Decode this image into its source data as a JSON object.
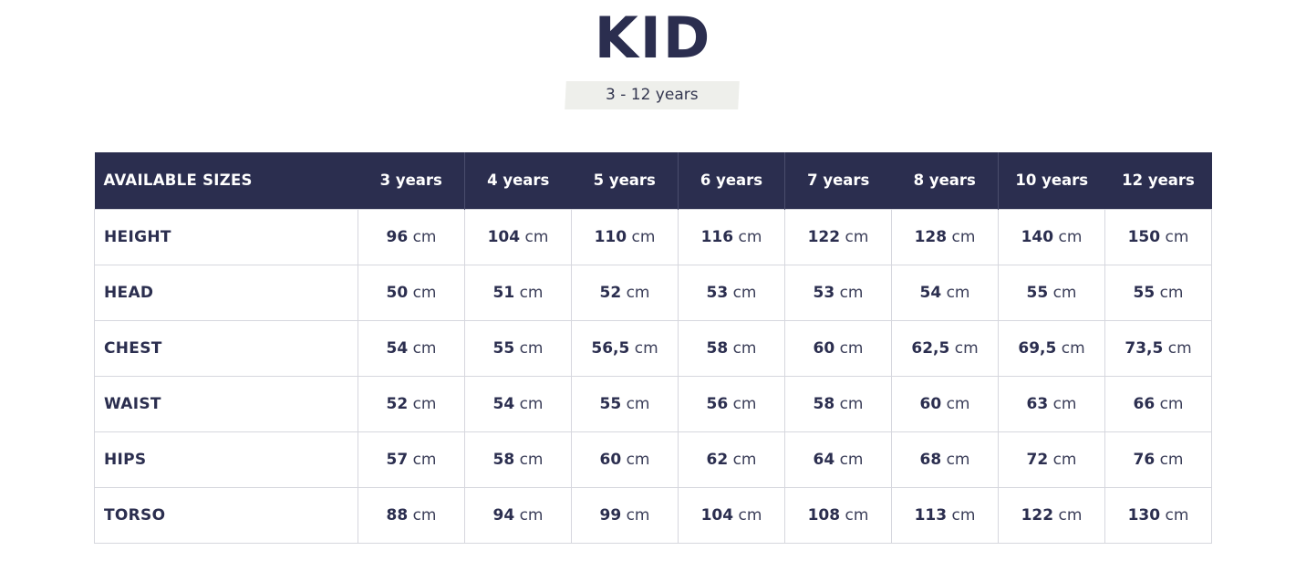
{
  "header": {
    "title": "KID",
    "subtitle": "3 - 12 years"
  },
  "table": {
    "header_label": "AVAILABLE SIZES",
    "columns": [
      "3 years",
      "4 years",
      "5 years",
      "6 years",
      "7 years",
      "8 years",
      "10 years",
      "12 years"
    ],
    "unit": "cm",
    "rows": [
      {
        "label": "HEIGHT",
        "values": [
          "96",
          "104",
          "110",
          "116",
          "122",
          "128",
          "140",
          "150"
        ]
      },
      {
        "label": "HEAD",
        "values": [
          "50",
          "51",
          "52",
          "53",
          "53",
          "54",
          "55",
          "55"
        ]
      },
      {
        "label": "CHEST",
        "values": [
          "54",
          "55",
          "56,5",
          "58",
          "60",
          "62,5",
          "69,5",
          "73,5"
        ]
      },
      {
        "label": "WAIST",
        "values": [
          "52",
          "54",
          "55",
          "56",
          "58",
          "60",
          "63",
          "66"
        ]
      },
      {
        "label": "HIPS",
        "values": [
          "57",
          "58",
          "60",
          "62",
          "64",
          "68",
          "72",
          "76"
        ]
      },
      {
        "label": "TORSO",
        "values": [
          "88",
          "94",
          "99",
          "104",
          "108",
          "113",
          "122",
          "130"
        ]
      }
    ]
  },
  "colors": {
    "navy": "#2b2e4f",
    "subtitle_bg": "#eeefeb",
    "grid": "#d6d7de"
  }
}
